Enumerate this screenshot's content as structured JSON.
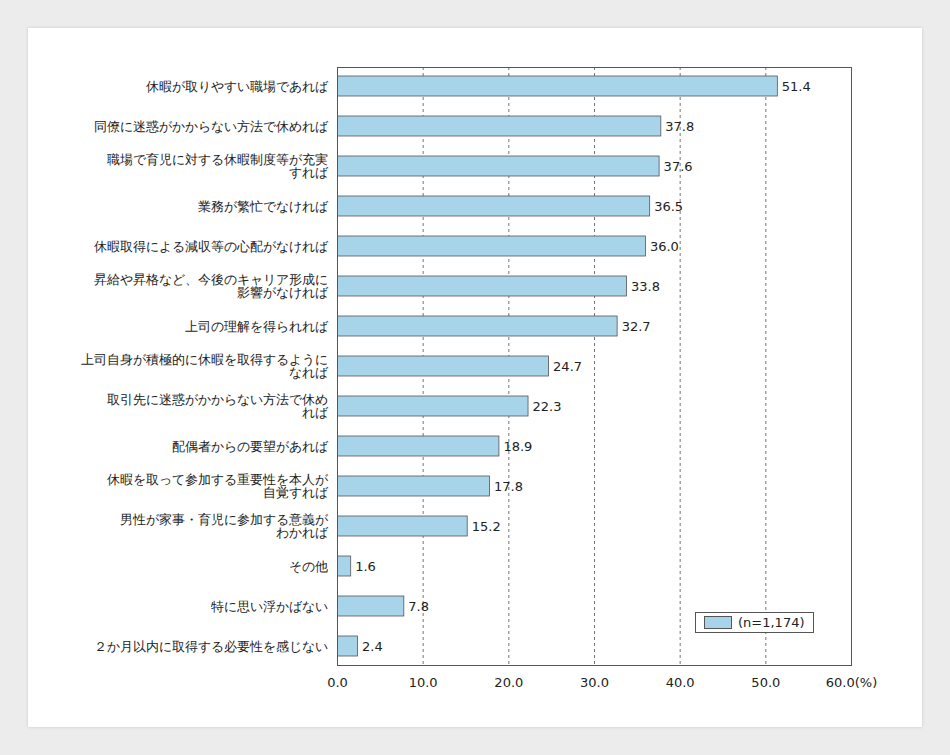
{
  "chart_data": {
    "type": "bar",
    "orientation": "horizontal",
    "categories": [
      "休暇が取りやすい職場であれば",
      "同僚に迷惑がかからない方法で休めれば",
      "職場で育児に対する休暇制度等が充実\nすれば",
      "業務が繁忙でなければ",
      "休暇取得による減収等の心配がなければ",
      "昇給や昇格など、今後のキャリア形成に\n影響がなければ",
      "上司の理解を得られれば",
      "上司自身が積極的に休暇を取得するように\nなれば",
      "取引先に迷惑がかからない方法で休め\nれば",
      "配偶者からの要望があれば",
      "休暇を取って参加する重要性を本人が\n自覚すれば",
      "男性が家事・育児に参加する意義が\nわかれば",
      "その他",
      "特に思い浮かばない",
      "２か月以内に取得する必要性を感じない"
    ],
    "series": [
      {
        "name": "(n=1,174)",
        "color": "#a8d4ea",
        "values": [
          51.4,
          37.8,
          37.6,
          36.5,
          36.0,
          33.8,
          32.7,
          24.7,
          22.3,
          18.9,
          17.8,
          15.2,
          1.6,
          7.8,
          2.4
        ],
        "value_labels": [
          "51.4",
          "37.8",
          "37.6",
          "36.5",
          "36.0",
          "33.8",
          "32.7",
          "24.7",
          "22.3",
          "18.9",
          "17.8",
          "15.2",
          "1.6",
          "7.8",
          "2.4"
        ]
      }
    ],
    "xlim": [
      0,
      60
    ],
    "xticks": [
      {
        "value": 0,
        "label": "0.0"
      },
      {
        "value": 10,
        "label": "10.0"
      },
      {
        "value": 20,
        "label": "20.0"
      },
      {
        "value": 30,
        "label": "30.0"
      },
      {
        "value": 40,
        "label": "40.0"
      },
      {
        "value": 50,
        "label": "50.0"
      },
      {
        "value": 60,
        "label": "60.0(%)"
      }
    ],
    "grid": true,
    "data_labels": true,
    "legend": "lower right"
  }
}
